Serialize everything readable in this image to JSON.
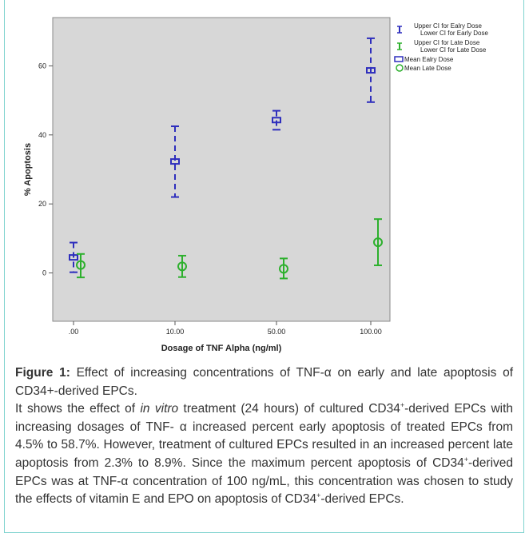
{
  "figure_label": "Figure 1:",
  "figure_title": " Effect of increasing concentrations of TNF-α on early and late apoptosis of CD34+-derived EPCs.",
  "description": {
    "p1": "It shows the effect of ",
    "p2": "in vitro",
    "p3": " treatment (24 hours) of cultured CD34",
    "p4": "+",
    "p5": "-derived EPCs with increasing dosages of TNF- α increased percent early apoptosis of treated EPCs from 4.5% to 58.7%. However, treatment of cultured EPCs resulted in an increased percent late apoptosis from 2.3% to 8.9%. Since the maximum percent apoptosis of CD34",
    "p6": "+",
    "p7": "-derived EPCs was at TNF-α concentration of 100 ng/mL, this concentration was chosen to study the effects of vitamin E and EPO on apoptosis of CD34",
    "p8": "+",
    "p9": "-derived EPCs."
  },
  "chart_data": {
    "type": "scatter",
    "categories": [
      ".00",
      "10.00",
      "50.00",
      "100.00"
    ],
    "xlabel": "Dosage of TNF Alpha (ng/ml)",
    "ylabel": "% Apoptosis",
    "ylim": [
      -14,
      74
    ],
    "yticks": [
      0,
      20,
      40,
      60
    ],
    "series": [
      {
        "name": "Mean Ealry Dose",
        "marker": "square",
        "color": "#2e2ebd",
        "values": [
          4.5,
          32.3,
          44.3,
          58.7
        ],
        "upper": [
          8.8,
          42.5,
          47.0,
          68.0
        ],
        "lower": [
          0.2,
          22.0,
          41.5,
          49.5
        ],
        "style": "dashed"
      },
      {
        "name": "Mean Late Dose",
        "marker": "circle",
        "color": "#2db02d",
        "values": [
          2.3,
          1.9,
          1.2,
          8.9
        ],
        "upper": [
          5.5,
          5.0,
          4.2,
          15.6
        ],
        "lower": [
          -1.3,
          -1.2,
          -1.6,
          2.2
        ],
        "style": "solid"
      }
    ],
    "legend": {
      "position": "top-right",
      "early_ci_upper": "Upper CI for Ealry Dose",
      "early_ci_lower": "Lower CI for Early Dose",
      "late_ci_upper": "Upper CI for Late Dose",
      "late_ci_lower": "Lower CI for Late Dose",
      "mean_early": "Mean Ealry Dose",
      "mean_late": "Mean Late Dose"
    },
    "colors": {
      "plot_bg": "#d7d7d7",
      "early": "#2e2ebd",
      "late": "#2db02d"
    }
  }
}
